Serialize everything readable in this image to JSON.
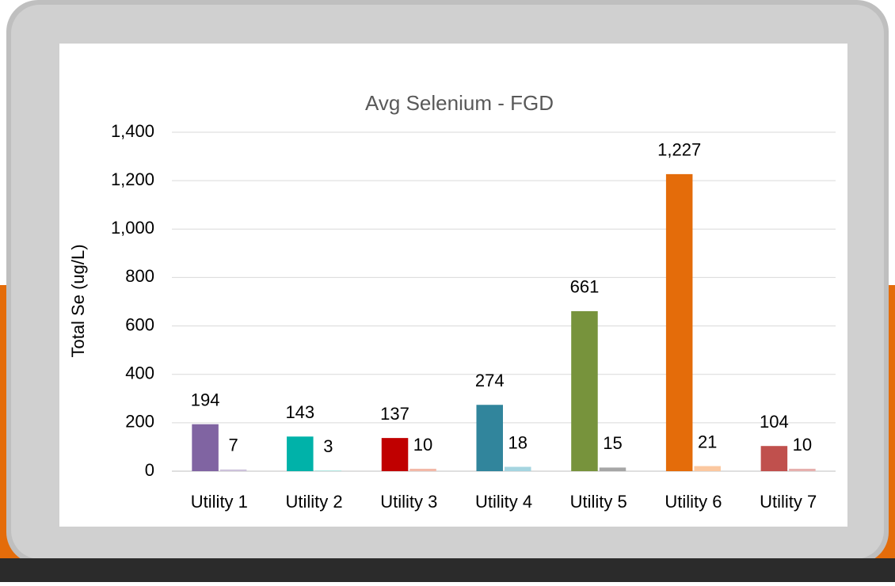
{
  "chart_data": {
    "type": "bar",
    "title": "Avg Selenium - FGD",
    "y_label": "Total Se (ug/L)",
    "categories": [
      "Utility 1",
      "Utility 2",
      "Utility 3",
      "Utility 4",
      "Utility 5",
      "Utility 6",
      "Utility 7"
    ],
    "series": [
      {
        "colors": [
          "#8064a2",
          "#00b2a9",
          "#c00000",
          "#31859c",
          "#77933c",
          "#e46c0a",
          "#c0504d"
        ],
        "values": [
          194,
          143,
          137,
          274,
          661,
          1227,
          104
        ],
        "value_labels": [
          "194",
          "143",
          "137",
          "274",
          "661",
          "1,227",
          "104"
        ]
      },
      {
        "colors": [
          "#ccc1da",
          "#a6e3de",
          "#f2b8a8",
          "#a5d5e0",
          "#a6a6a6",
          "#fbc8a0",
          "#e6b0ae"
        ],
        "values": [
          7,
          3,
          10,
          18,
          15,
          21,
          10
        ]
      }
    ],
    "ylim": [
      0,
      1400
    ],
    "yticks": [
      0,
      200,
      400,
      600,
      800,
      {
        "value": 1000,
        "label": "1,000"
      },
      {
        "value": 1200,
        "label": "1,200"
      },
      {
        "value": 1400,
        "label": "1,400"
      }
    ],
    "grid": true
  }
}
